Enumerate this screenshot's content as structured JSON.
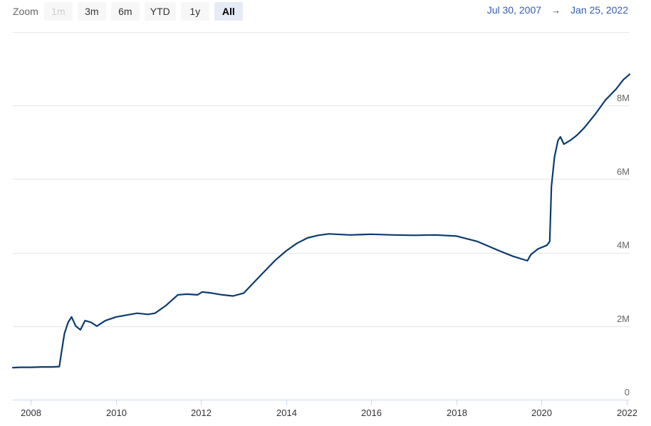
{
  "zoom": {
    "label": "Zoom",
    "buttons": [
      {
        "label": "1m",
        "state": "disabled"
      },
      {
        "label": "3m",
        "state": "normal"
      },
      {
        "label": "6m",
        "state": "normal"
      },
      {
        "label": "YTD",
        "state": "normal"
      },
      {
        "label": "1y",
        "state": "normal"
      },
      {
        "label": "All",
        "state": "active"
      }
    ]
  },
  "range": {
    "from": "Jul 30, 2007",
    "arrow": "→",
    "to": "Jan 25, 2022"
  },
  "colors": {
    "line": "#0b3b6e",
    "grid": "#e6e6e6",
    "range_text": "#335cad"
  },
  "chart_data": {
    "type": "line",
    "title": "",
    "xlabel": "",
    "ylabel": "",
    "xlim": [
      "2007-07-30",
      "2022-01-25"
    ],
    "ylim": [
      0,
      10000000
    ],
    "y_ticks": [
      {
        "value": 0,
        "label": "0"
      },
      {
        "value": 2000000,
        "label": "2M"
      },
      {
        "value": 4000000,
        "label": "4M"
      },
      {
        "value": 6000000,
        "label": "6M"
      },
      {
        "value": 8000000,
        "label": "8M"
      }
    ],
    "x_ticks": [
      {
        "date": "2008-01-01",
        "label": "2008"
      },
      {
        "date": "2010-01-01",
        "label": "2010"
      },
      {
        "date": "2012-01-01",
        "label": "2012"
      },
      {
        "date": "2014-01-01",
        "label": "2014"
      },
      {
        "date": "2016-01-01",
        "label": "2016"
      },
      {
        "date": "2018-01-01",
        "label": "2018"
      },
      {
        "date": "2020-01-01",
        "label": "2020"
      },
      {
        "date": "2022-01-01",
        "label": "2022"
      }
    ],
    "grid": true,
    "legend": "none",
    "series": [
      {
        "points": [
          [
            "2007-07-30",
            870000
          ],
          [
            "2007-10-01",
            880000
          ],
          [
            "2008-01-01",
            880000
          ],
          [
            "2008-04-01",
            890000
          ],
          [
            "2008-07-01",
            890000
          ],
          [
            "2008-09-01",
            900000
          ],
          [
            "2008-09-20",
            1300000
          ],
          [
            "2008-10-15",
            1800000
          ],
          [
            "2008-11-15",
            2100000
          ],
          [
            "2008-12-15",
            2250000
          ],
          [
            "2009-01-20",
            2000000
          ],
          [
            "2009-03-01",
            1900000
          ],
          [
            "2009-04-10",
            2150000
          ],
          [
            "2009-06-01",
            2100000
          ],
          [
            "2009-07-20",
            2000000
          ],
          [
            "2009-10-01",
            2150000
          ],
          [
            "2010-01-01",
            2250000
          ],
          [
            "2010-04-01",
            2300000
          ],
          [
            "2010-07-01",
            2350000
          ],
          [
            "2010-10-01",
            2320000
          ],
          [
            "2010-12-01",
            2350000
          ],
          [
            "2011-03-01",
            2550000
          ],
          [
            "2011-06-15",
            2850000
          ],
          [
            "2011-09-01",
            2870000
          ],
          [
            "2011-12-01",
            2850000
          ],
          [
            "2012-01-10",
            2930000
          ],
          [
            "2012-04-01",
            2900000
          ],
          [
            "2012-07-01",
            2850000
          ],
          [
            "2012-10-01",
            2820000
          ],
          [
            "2013-01-01",
            2900000
          ],
          [
            "2013-04-01",
            3200000
          ],
          [
            "2013-07-01",
            3500000
          ],
          [
            "2013-10-01",
            3800000
          ],
          [
            "2014-01-01",
            4050000
          ],
          [
            "2014-04-01",
            4250000
          ],
          [
            "2014-07-01",
            4400000
          ],
          [
            "2014-10-01",
            4470000
          ],
          [
            "2015-01-01",
            4510000
          ],
          [
            "2015-07-01",
            4480000
          ],
          [
            "2016-01-01",
            4500000
          ],
          [
            "2016-07-01",
            4480000
          ],
          [
            "2017-01-01",
            4470000
          ],
          [
            "2017-07-01",
            4480000
          ],
          [
            "2018-01-01",
            4450000
          ],
          [
            "2018-07-01",
            4300000
          ],
          [
            "2019-01-01",
            4050000
          ],
          [
            "2019-05-01",
            3900000
          ],
          [
            "2019-09-01",
            3780000
          ],
          [
            "2019-10-01",
            3950000
          ],
          [
            "2019-12-01",
            4100000
          ],
          [
            "2020-02-15",
            4200000
          ],
          [
            "2020-03-10",
            4300000
          ],
          [
            "2020-03-25",
            5800000
          ],
          [
            "2020-04-20",
            6600000
          ],
          [
            "2020-05-20",
            7050000
          ],
          [
            "2020-06-10",
            7150000
          ],
          [
            "2020-07-10",
            6950000
          ],
          [
            "2020-09-01",
            7050000
          ],
          [
            "2020-11-01",
            7200000
          ],
          [
            "2021-01-01",
            7400000
          ],
          [
            "2021-04-01",
            7750000
          ],
          [
            "2021-07-01",
            8150000
          ],
          [
            "2021-10-01",
            8450000
          ],
          [
            "2021-12-01",
            8700000
          ],
          [
            "2022-01-25",
            8850000
          ]
        ]
      }
    ]
  }
}
